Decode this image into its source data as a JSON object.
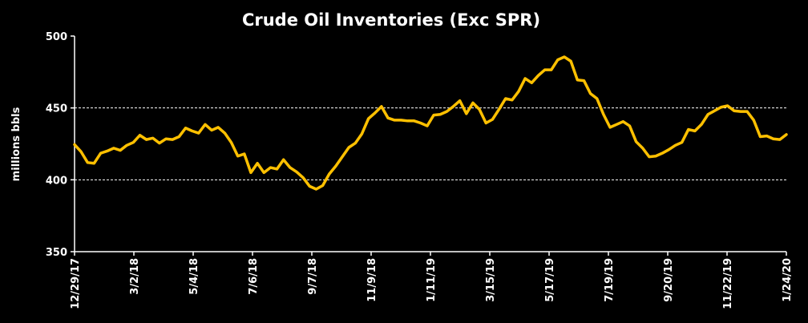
{
  "chart_data": {
    "type": "line",
    "title": "Crude Oil Inventories (Exc SPR)",
    "xlabel": "",
    "ylabel": "millions bbls",
    "ylim": [
      350,
      500
    ],
    "yticks": [
      350,
      400,
      450,
      500
    ],
    "gridlines_y": [
      400,
      450
    ],
    "grid": true,
    "legend": "none",
    "x_tick_labels": [
      "12/29/17",
      "3/2/18",
      "5/4/18",
      "7/6/18",
      "9/7/18",
      "11/9/18",
      "1/11/19",
      "3/15/19",
      "5/17/19",
      "7/19/19",
      "9/20/19",
      "11/22/19",
      "1/24/20"
    ],
    "line_color": "#FFC000",
    "series": [
      {
        "values": [
          424.5,
          419.5,
          412,
          411.5,
          418.5,
          420,
          422,
          420.5,
          424,
          426,
          431,
          428,
          429,
          425.5,
          428.5,
          428,
          430,
          436,
          434,
          432.5,
          438.5,
          434.5,
          436.5,
          432.5,
          426,
          416.5,
          418,
          405,
          411.5,
          405,
          408.5,
          407.5,
          414,
          408.5,
          405.5,
          401.5,
          395.5,
          393.5,
          396,
          404,
          409.5,
          416,
          422.5,
          425.5,
          432,
          442.5,
          446.5,
          451,
          443,
          441.5,
          441.5,
          441,
          441,
          439.5,
          437.5,
          445,
          445.5,
          447.5,
          451,
          455,
          446,
          453.5,
          449,
          439.5,
          442,
          449,
          456.5,
          455.5,
          461.5,
          470.5,
          467.5,
          472.5,
          476.5,
          476.5,
          483.5,
          485.5,
          482.5,
          469.5,
          469,
          460,
          456.5,
          445.5,
          436.5,
          438.5,
          440.5,
          437.5,
          426.5,
          422,
          416,
          416.5,
          418.5,
          421,
          424,
          426,
          435,
          434,
          438.5,
          445.5,
          448,
          450.5,
          451.5,
          448,
          447.5,
          447.5,
          441.5,
          430,
          430.5,
          428.5,
          428,
          431.5
        ]
      }
    ]
  }
}
